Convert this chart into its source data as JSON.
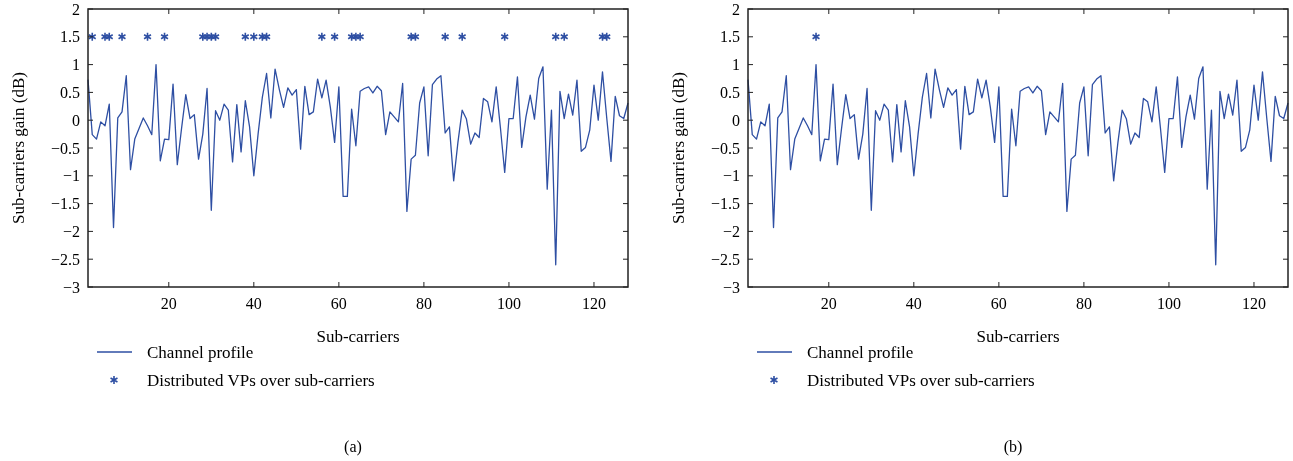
{
  "chart_data": [
    {
      "type": "line",
      "xlabel": "Sub-carriers",
      "ylabel": "Sub-carriers gain (dB)",
      "xlim": [
        1,
        128
      ],
      "ylim": [
        -3,
        2
      ],
      "xticks": [
        20,
        40,
        60,
        80,
        100,
        120
      ],
      "yticks": [
        -3,
        -2.5,
        -2,
        -1.5,
        -1,
        -0.5,
        0,
        0.5,
        1,
        1.5,
        2
      ],
      "grid": false,
      "legend": "bottom",
      "annotations": [
        "(a)"
      ],
      "series": [
        {
          "name": "Channel profile",
          "type": "line",
          "marker": "none",
          "line_style": "solid",
          "color": "#2e4fa3",
          "x": [
            1,
            2,
            3,
            4,
            5,
            6,
            7,
            8,
            9,
            10,
            11,
            12,
            13,
            14,
            15,
            16,
            17,
            18,
            19,
            20,
            21,
            22,
            23,
            24,
            25,
            26,
            27,
            28,
            29,
            30,
            31,
            32,
            33,
            34,
            35,
            36,
            37,
            38,
            39,
            40,
            41,
            42,
            43,
            44,
            45,
            46,
            47,
            48,
            49,
            50,
            51,
            52,
            53,
            54,
            55,
            56,
            57,
            58,
            59,
            60,
            61,
            62,
            63,
            64,
            65,
            66,
            67,
            68,
            69,
            70,
            71,
            72,
            73,
            74,
            75,
            76,
            77,
            78,
            79,
            80,
            81,
            82,
            83,
            84,
            85,
            86,
            87,
            88,
            89,
            90,
            91,
            92,
            93,
            94,
            95,
            96,
            97,
            98,
            99,
            100,
            101,
            102,
            103,
            104,
            105,
            106,
            107,
            108,
            109,
            110,
            111,
            112,
            113,
            114,
            115,
            116,
            117,
            118,
            119,
            120,
            121,
            122,
            123,
            124,
            125,
            126,
            127,
            128
          ],
          "values": [
            0.73,
            -0.26,
            -0.34,
            -0.03,
            -0.1,
            0.29,
            -1.93,
            0.04,
            0.15,
            0.8,
            -0.89,
            -0.34,
            -0.15,
            0.04,
            -0.1,
            -0.26,
            1.0,
            -0.73,
            -0.34,
            -0.35,
            0.65,
            -0.8,
            -0.15,
            0.46,
            0.03,
            0.1,
            -0.7,
            -0.25,
            0.57,
            -1.62,
            0.17,
            0.0,
            0.29,
            0.18,
            -0.75,
            0.28,
            -0.57,
            0.35,
            -0.12,
            -1.0,
            -0.25,
            0.41,
            0.84,
            0.04,
            0.92,
            0.55,
            0.23,
            0.58,
            0.45,
            0.55,
            -0.52,
            0.61,
            0.1,
            0.15,
            0.74,
            0.4,
            0.72,
            0.23,
            -0.4,
            0.6,
            -1.37,
            -1.37,
            0.2,
            -0.46,
            0.52,
            0.57,
            0.6,
            0.49,
            0.61,
            0.53,
            -0.26,
            0.15,
            0.06,
            -0.03,
            0.66,
            -1.64,
            -0.7,
            -0.63,
            0.31,
            0.6,
            -0.64,
            0.64,
            0.74,
            0.8,
            -0.23,
            -0.12,
            -1.09,
            -0.4,
            0.18,
            0.02,
            -0.43,
            -0.23,
            -0.31,
            0.39,
            0.33,
            -0.03,
            0.6,
            -0.14,
            -0.94,
            0.03,
            0.03,
            0.78,
            -0.49,
            0.06,
            0.45,
            0.02,
            0.75,
            0.96,
            -1.24,
            0.18,
            -2.6,
            0.52,
            0.03,
            0.47,
            0.09,
            0.72,
            -0.56,
            -0.49,
            -0.18,
            0.63,
            0.0,
            0.87,
            0.04,
            -0.74,
            0.43,
            0.08,
            0.03,
            0.31
          ]
        },
        {
          "name": "Distributed VPs over sub-carriers",
          "type": "scatter",
          "marker": "cross",
          "color": "#2e4fa3",
          "x": [
            2,
            5,
            6,
            9,
            15,
            19,
            28,
            29,
            30,
            31,
            38,
            40,
            42,
            43,
            56,
            59,
            63,
            64,
            65,
            77,
            78,
            85,
            89,
            99,
            111,
            113,
            122,
            123
          ],
          "values": [
            1.5,
            1.5,
            1.5,
            1.5,
            1.5,
            1.5,
            1.5,
            1.5,
            1.5,
            1.5,
            1.5,
            1.5,
            1.5,
            1.5,
            1.5,
            1.5,
            1.5,
            1.5,
            1.5,
            1.5,
            1.5,
            1.5,
            1.5,
            1.5,
            1.5,
            1.5,
            1.5,
            1.5
          ]
        }
      ]
    },
    {
      "type": "line",
      "xlabel": "Sub-carriers",
      "ylabel": "Sub-carriers gain (dB)",
      "xlim": [
        1,
        128
      ],
      "ylim": [
        -3,
        2
      ],
      "xticks": [
        20,
        40,
        60,
        80,
        100,
        120
      ],
      "yticks": [
        -3,
        -2.5,
        -2,
        -1.5,
        -1,
        -0.5,
        0,
        0.5,
        1,
        1.5,
        2
      ],
      "grid": false,
      "legend": "bottom",
      "annotations": [
        "(b)"
      ],
      "series": [
        {
          "name": "Channel profile",
          "type": "line",
          "marker": "none",
          "line_style": "solid",
          "color": "#2e4fa3",
          "x": [
            1,
            2,
            3,
            4,
            5,
            6,
            7,
            8,
            9,
            10,
            11,
            12,
            13,
            14,
            15,
            16,
            17,
            18,
            19,
            20,
            21,
            22,
            23,
            24,
            25,
            26,
            27,
            28,
            29,
            30,
            31,
            32,
            33,
            34,
            35,
            36,
            37,
            38,
            39,
            40,
            41,
            42,
            43,
            44,
            45,
            46,
            47,
            48,
            49,
            50,
            51,
            52,
            53,
            54,
            55,
            56,
            57,
            58,
            59,
            60,
            61,
            62,
            63,
            64,
            65,
            66,
            67,
            68,
            69,
            70,
            71,
            72,
            73,
            74,
            75,
            76,
            77,
            78,
            79,
            80,
            81,
            82,
            83,
            84,
            85,
            86,
            87,
            88,
            89,
            90,
            91,
            92,
            93,
            94,
            95,
            96,
            97,
            98,
            99,
            100,
            101,
            102,
            103,
            104,
            105,
            106,
            107,
            108,
            109,
            110,
            111,
            112,
            113,
            114,
            115,
            116,
            117,
            118,
            119,
            120,
            121,
            122,
            123,
            124,
            125,
            126,
            127,
            128
          ],
          "values": [
            0.73,
            -0.26,
            -0.34,
            -0.03,
            -0.1,
            0.29,
            -1.93,
            0.04,
            0.15,
            0.8,
            -0.89,
            -0.34,
            -0.15,
            0.04,
            -0.1,
            -0.26,
            1.0,
            -0.73,
            -0.34,
            -0.35,
            0.65,
            -0.8,
            -0.15,
            0.46,
            0.03,
            0.1,
            -0.7,
            -0.25,
            0.57,
            -1.62,
            0.17,
            0.0,
            0.29,
            0.18,
            -0.75,
            0.28,
            -0.57,
            0.35,
            -0.12,
            -1.0,
            -0.25,
            0.41,
            0.84,
            0.04,
            0.92,
            0.55,
            0.23,
            0.58,
            0.45,
            0.55,
            -0.52,
            0.61,
            0.1,
            0.15,
            0.74,
            0.4,
            0.72,
            0.23,
            -0.4,
            0.6,
            -1.37,
            -1.37,
            0.2,
            -0.46,
            0.52,
            0.57,
            0.6,
            0.49,
            0.61,
            0.53,
            -0.26,
            0.15,
            0.06,
            -0.03,
            0.66,
            -1.64,
            -0.7,
            -0.63,
            0.31,
            0.6,
            -0.64,
            0.64,
            0.74,
            0.8,
            -0.23,
            -0.12,
            -1.09,
            -0.4,
            0.18,
            0.02,
            -0.43,
            -0.23,
            -0.31,
            0.39,
            0.33,
            -0.03,
            0.6,
            -0.14,
            -0.94,
            0.03,
            0.03,
            0.78,
            -0.49,
            0.06,
            0.45,
            0.02,
            0.75,
            0.96,
            -1.24,
            0.18,
            -2.6,
            0.52,
            0.03,
            0.47,
            0.09,
            0.72,
            -0.56,
            -0.49,
            -0.18,
            0.63,
            0.0,
            0.87,
            0.04,
            -0.74,
            0.43,
            0.08,
            0.03,
            0.31
          ]
        },
        {
          "name": "Distributed VPs over sub-carriers",
          "type": "scatter",
          "marker": "cross",
          "color": "#2e4fa3",
          "x": [
            17
          ],
          "values": [
            1.5
          ]
        }
      ]
    }
  ]
}
